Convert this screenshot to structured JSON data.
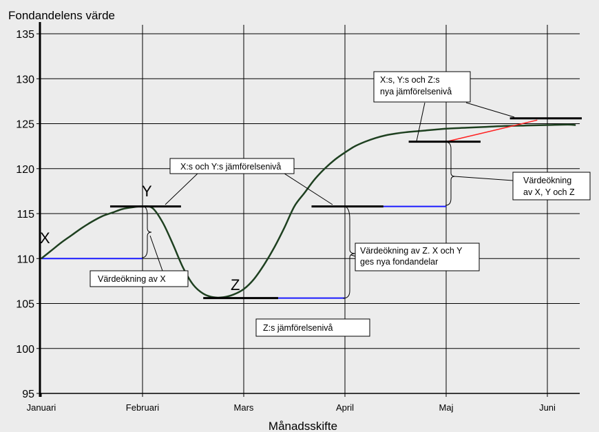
{
  "chart_data": {
    "type": "line",
    "title": "",
    "ylabel": "Fondandelens värde",
    "xlabel": "Månadsskifte",
    "categories": [
      "Januari",
      "Februari",
      "Mars",
      "April",
      "Maj",
      "Juni"
    ],
    "yticks": [
      95,
      100,
      105,
      110,
      115,
      120,
      125,
      130,
      135
    ],
    "ylim": [
      95,
      136
    ],
    "grid": true,
    "series": [
      {
        "color": "#1e4020",
        "x": [
          0,
          0.1,
          0.2,
          0.3,
          0.4,
          0.5,
          0.6,
          0.7,
          0.8,
          0.9,
          1.0,
          1.1,
          1.2,
          1.3,
          1.4,
          1.5,
          1.6,
          1.7,
          1.8,
          1.9,
          2.0,
          2.1,
          2.2,
          2.3,
          2.4,
          2.5,
          2.6,
          2.7,
          2.8,
          2.9,
          3.0,
          3.1,
          3.2,
          3.3,
          3.4,
          3.5,
          3.6,
          3.7,
          3.8,
          3.9,
          4.0,
          4.2,
          4.4,
          4.6,
          4.8,
          5.0,
          5.2,
          5.28
        ],
        "values": [
          110.0,
          110.9,
          111.8,
          112.6,
          113.4,
          114.1,
          114.7,
          115.1,
          115.5,
          115.7,
          115.8,
          115.6,
          114.0,
          111.6,
          109.0,
          107.1,
          106.1,
          105.7,
          105.7,
          106.0,
          106.6,
          107.7,
          109.3,
          111.2,
          113.4,
          115.8,
          117.3,
          118.8,
          120.0,
          121.0,
          121.8,
          122.5,
          123.0,
          123.4,
          123.7,
          123.9,
          124.05,
          124.15,
          124.25,
          124.35,
          124.45,
          124.55,
          124.65,
          124.75,
          124.8,
          124.85,
          124.9,
          124.85
        ]
      },
      {
        "color": "#ff2020",
        "x": [
          4.0,
          4.9
        ],
        "values": [
          123.0,
          125.4
        ]
      }
    ],
    "levels": [
      {
        "label": "Y",
        "value": 115.8,
        "from": 0.68,
        "to": 1.38
      },
      {
        "label": "Z",
        "value": 105.6,
        "from": 1.6,
        "to": 2.34
      },
      {
        "label": "",
        "value": 115.8,
        "from": 2.67,
        "to": 3.38
      },
      {
        "label": "",
        "value": 123.0,
        "from": 3.63,
        "to": 4.34
      },
      {
        "label": "",
        "value": 125.6,
        "from": 4.63,
        "to": 5.34
      }
    ],
    "reference_lines": [
      {
        "value": 110.0,
        "from": 0.0,
        "to": 1.0
      },
      {
        "value": 105.6,
        "from": 2.34,
        "to": 3.0
      },
      {
        "value": 115.8,
        "from": 3.38,
        "to": 4.0
      }
    ],
    "point_labels": {
      "x": "X",
      "y": "Y",
      "z": "Z"
    },
    "annotations": {
      "vardeokning_x": "Värdeökning av X",
      "xy_jamforelseniva": "X:s och Y:s jämförelsenivå",
      "z_jamforelseniva": "Z:s jämförelsenivå",
      "vardeokning_z_1": "Värdeökning av Z. X och Y",
      "vardeokning_z_2": "ges nya fondandelar",
      "xyz_niva_1": "X:s, Y:s och Z:s",
      "xyz_niva_2": "nya jämförelsenivå",
      "vardeokning_xyz_1": "Värdeökning",
      "vardeokning_xyz_2": "av X, Y och Z"
    }
  }
}
